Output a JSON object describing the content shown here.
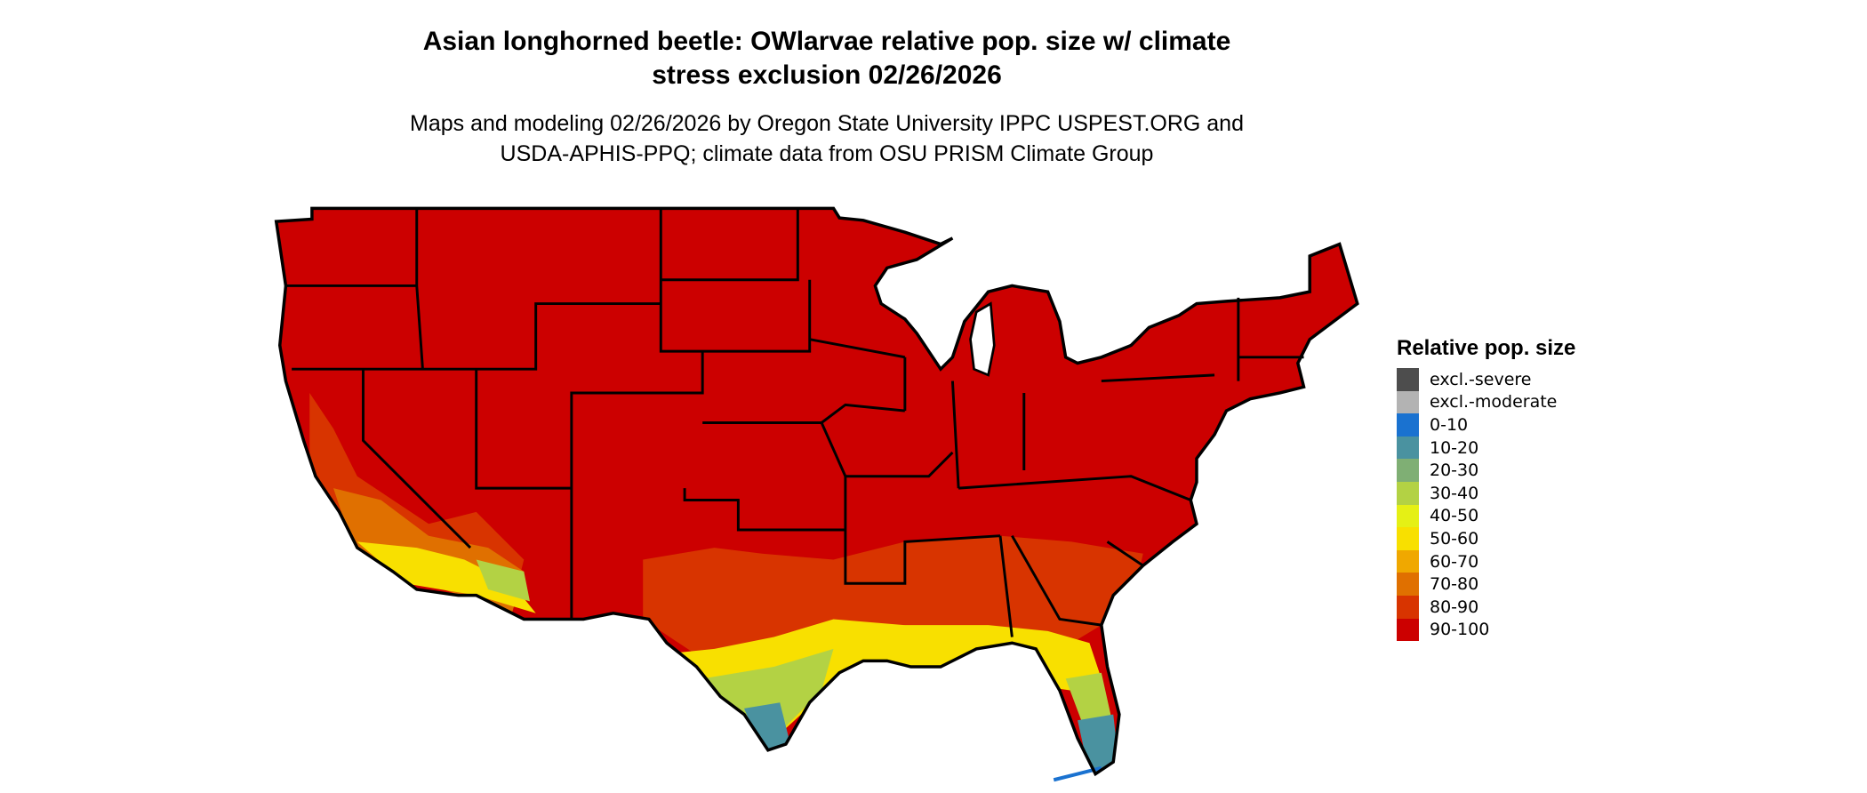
{
  "title": {
    "line1": "Asian longhorned beetle: OWlarvae relative pop. size w/ climate",
    "line2": "stress exclusion 02/26/2026"
  },
  "subtitle": {
    "line1": "Maps and modeling 02/26/2026 by Oregon State University IPPC USPEST.ORG and",
    "line2": "USDA-APHIS-PPQ; climate data from OSU PRISM Climate Group"
  },
  "chart_data": {
    "type": "heatmap",
    "title": "Asian longhorned beetle: OWlarvae relative pop. size w/ climate stress exclusion 02/26/2026",
    "region": "Contiguous United States",
    "legend": {
      "title": "Relative pop. size",
      "placement": "right",
      "items": [
        {
          "label": "excl.-severe",
          "color": "#4d4d4d"
        },
        {
          "label": "excl.-moderate",
          "color": "#b3b3b3"
        },
        {
          "label": "0-10",
          "color": "#1a72d0"
        },
        {
          "label": "10-20",
          "color": "#4a92a0"
        },
        {
          "label": "20-30",
          "color": "#7faf74"
        },
        {
          "label": "30-40",
          "color": "#b3d244"
        },
        {
          "label": "40-50",
          "color": "#e5f015"
        },
        {
          "label": "50-60",
          "color": "#f8e000"
        },
        {
          "label": "60-70",
          "color": "#f0a800"
        },
        {
          "label": "70-80",
          "color": "#e07000"
        },
        {
          "label": "80-90",
          "color": "#d83400"
        },
        {
          "label": "90-100",
          "color": "#cc0000"
        }
      ]
    },
    "dominant_class": "90-100",
    "notes_visible": []
  }
}
